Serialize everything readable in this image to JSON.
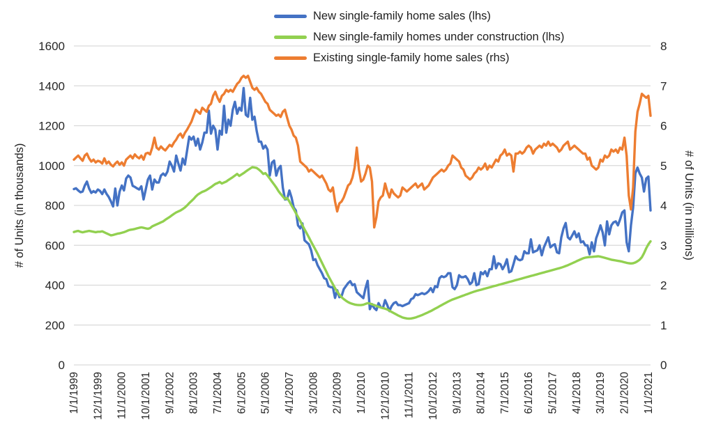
{
  "chart_data": {
    "type": "line",
    "grid": "horizontal",
    "legend_position": "top-center",
    "x_tick_every": 11,
    "x_tick_labels": [
      "1/1/1999",
      "12/1/1999",
      "11/1/2000",
      "10/1/2001",
      "9/1/2002",
      "8/1/2003",
      "7/1/2004",
      "6/1/2005",
      "5/1/2006",
      "4/1/2007",
      "3/1/2008",
      "2/1/2009",
      "1/1/2010",
      "12/1/2010",
      "11/1/2011",
      "10/1/2012",
      "9/1/2013",
      "8/1/2014",
      "7/1/2015",
      "6/1/2016",
      "5/1/2017",
      "4/1/2018",
      "3/1/2019",
      "2/1/2020",
      "1/1/2021"
    ],
    "left_axis": {
      "title": "# of Units (in thousands)",
      "min": 0,
      "max": 1600,
      "step": 200
    },
    "right_axis": {
      "title": "# of Units (in millions)",
      "min": 0,
      "max": 8,
      "step": 1
    },
    "colors": {
      "gridline": "#d9d9d9",
      "text": "#262626"
    },
    "series": [
      {
        "name": "New single-family home sales (lhs)",
        "color": "#4472C4",
        "axis": "left",
        "values": [
          882,
          886,
          875,
          866,
          870,
          900,
          920,
          885,
          863,
          872,
          865,
          880,
          873,
          857,
          880,
          858,
          843,
          820,
          795,
          885,
          800,
          869,
          900,
          875,
          935,
          950,
          940,
          898,
          893,
          886,
          880,
          896,
          830,
          880,
          930,
          950,
          880,
          930,
          915,
          915,
          950,
          960,
          950,
          970,
          1020,
          1000,
          970,
          1050,
          1010,
          975,
          1035,
          1005,
          1075,
          1145,
          1130,
          1145,
          1100,
          1135,
          1080,
          1115,
          1165,
          1165,
          1275,
          1160,
          1200,
          1180,
          1080,
          1175,
          1155,
          1300,
          1165,
          1230,
          1200,
          1280,
          1320,
          1260,
          1290,
          1275,
          1389,
          1255,
          1245,
          1340,
          1230,
          1245,
          1174,
          1120,
          1120,
          1085,
          1100,
          1080,
          950,
          1015,
          1025,
          950,
          985,
          998,
          890,
          830,
          832,
          875,
          840,
          790,
          775,
          700,
          685,
          710,
          625,
          615,
          605,
          575,
          526,
          530,
          500,
          480,
          460,
          435,
          430,
          395,
          390,
          390,
          336,
          375,
          340,
          345,
          380,
          395,
          410,
          420,
          400,
          405,
          365,
          355,
          345,
          335,
          385,
          422,
          280,
          305,
          285,
          275,
          310,
          290,
          285,
          325,
          300,
          270,
          295,
          310,
          315,
          300,
          300,
          295,
          300,
          305,
          310,
          330,
          335,
          355,
          350,
          355,
          360,
          355,
          360,
          370,
          385,
          365,
          395,
          390,
          435,
          445,
          440,
          445,
          460,
          460,
          390,
          380,
          400,
          450,
          440,
          440,
          445,
          430,
          405,
          415,
          460,
          400,
          405,
          465,
          455,
          470,
          445,
          480,
          480,
          545,
          485,
          510,
          505,
          480,
          500,
          530,
          465,
          470,
          505,
          545,
          530,
          525,
          530,
          570,
          560,
          560,
          630,
          565,
          570,
          575,
          600,
          550,
          590,
          615,
          640,
          590,
          600,
          605,
          565,
          560,
          640,
          685,
          712,
          640,
          630,
          650,
          670,
          640,
          660,
          615,
          620,
          600,
          600,
          555,
          615,
          570,
          635,
          665,
          700,
          665,
          600,
          720,
          655,
          700,
          715,
          720,
          700,
          730,
          765,
          775,
          615,
          570,
          700,
          790,
          960,
          990,
          960,
          940,
          870,
          935,
          945,
          775
        ]
      },
      {
        "name": "New single-family homes under construction (lhs)",
        "color": "#92D050",
        "axis": "left",
        "values": [
          667,
          670,
          672,
          668,
          665,
          668,
          670,
          672,
          670,
          668,
          666,
          668,
          668,
          670,
          665,
          660,
          655,
          650,
          652,
          655,
          658,
          660,
          663,
          666,
          670,
          675,
          678,
          680,
          682,
          685,
          688,
          690,
          688,
          685,
          683,
          686,
          695,
          700,
          705,
          710,
          715,
          720,
          728,
          735,
          742,
          750,
          758,
          765,
          770,
          775,
          782,
          790,
          800,
          812,
          822,
          832,
          845,
          855,
          862,
          868,
          872,
          878,
          885,
          892,
          900,
          908,
          912,
          918,
          910,
          915,
          920,
          928,
          935,
          942,
          950,
          958,
          948,
          955,
          962,
          970,
          978,
          985,
          992,
          990,
          988,
          980,
          970,
          958,
          962,
          950,
          935,
          920,
          905,
          890,
          872,
          858,
          845,
          832,
          838,
          820,
          800,
          782,
          762,
          742,
          722,
          700,
          680,
          660,
          640,
          618,
          598,
          578,
          558,
          535,
          512,
          490,
          468,
          445,
          425,
          405,
          385,
          368,
          352,
          340,
          330,
          322,
          315,
          310,
          306,
          303,
          301,
          300,
          300,
          302,
          306,
          310,
          308,
          304,
          300,
          296,
          292,
          288,
          285,
          282,
          278,
          272,
          266,
          260,
          254,
          248,
          243,
          238,
          235,
          233,
          232,
          233,
          235,
          238,
          242,
          246,
          250,
          255,
          260,
          265,
          270,
          276,
          282,
          288,
          294,
          300,
          306,
          312,
          318,
          323,
          328,
          332,
          336,
          340,
          344,
          348,
          352,
          356,
          360,
          364,
          368,
          371,
          374,
          377,
          380,
          383,
          386,
          389,
          392,
          395,
          398,
          401,
          404,
          407,
          410,
          413,
          416,
          419,
          422,
          425,
          428,
          431,
          434,
          437,
          440,
          443,
          446,
          449,
          452,
          455,
          458,
          461,
          464,
          467,
          470,
          473,
          476,
          479,
          482,
          485,
          488,
          492,
          496,
          500,
          505,
          510,
          515,
          520,
          525,
          530,
          535,
          538,
          540,
          541,
          542,
          543,
          544,
          545,
          543,
          540,
          537,
          534,
          531,
          528,
          526,
          524,
          522,
          520,
          518,
          515,
          512,
          510,
          509,
          510,
          514,
          520,
          528,
          540,
          560,
          585,
          605,
          620
        ]
      },
      {
        "name": "Existing single-family home sales (rhs)",
        "color": "#ED7D31",
        "axis": "right",
        "values": [
          5.15,
          5.2,
          5.25,
          5.18,
          5.12,
          5.25,
          5.3,
          5.18,
          5.1,
          5.15,
          5.08,
          5.12,
          5.1,
          5.05,
          5.18,
          5.05,
          5.1,
          5.02,
          4.98,
          5.05,
          5.1,
          5.02,
          5.08,
          5.0,
          5.15,
          5.2,
          5.25,
          5.18,
          5.28,
          5.22,
          5.18,
          5.25,
          5.15,
          5.3,
          5.32,
          5.28,
          5.45,
          5.7,
          5.45,
          5.4,
          5.48,
          5.42,
          5.38,
          5.45,
          5.52,
          5.48,
          5.58,
          5.65,
          5.75,
          5.8,
          5.7,
          5.82,
          5.9,
          6.0,
          6.1,
          6.25,
          6.4,
          6.35,
          6.3,
          6.45,
          6.4,
          6.35,
          6.5,
          6.55,
          6.75,
          6.85,
          6.7,
          6.6,
          6.75,
          6.8,
          6.9,
          6.85,
          6.9,
          6.85,
          6.95,
          7.05,
          7.1,
          7.2,
          7.25,
          7.2,
          7.25,
          7.1,
          6.95,
          6.9,
          6.95,
          6.85,
          6.8,
          6.7,
          6.6,
          6.55,
          6.4,
          6.35,
          6.3,
          6.25,
          6.28,
          6.22,
          6.35,
          6.4,
          6.2,
          6.0,
          5.9,
          5.75,
          5.7,
          5.5,
          5.1,
          5.05,
          5.0,
          4.95,
          4.85,
          4.9,
          4.85,
          4.8,
          4.75,
          4.7,
          4.75,
          4.65,
          4.55,
          4.4,
          4.35,
          4.45,
          4.1,
          3.85,
          4.05,
          4.1,
          4.2,
          4.35,
          4.5,
          4.55,
          4.7,
          4.95,
          5.45,
          4.9,
          4.6,
          4.65,
          4.8,
          5.0,
          4.95,
          4.6,
          3.45,
          3.7,
          4.1,
          4.2,
          4.25,
          4.55,
          4.35,
          4.2,
          4.4,
          4.3,
          4.25,
          4.2,
          4.25,
          4.45,
          4.4,
          4.35,
          4.4,
          4.45,
          4.5,
          4.55,
          4.45,
          4.5,
          4.55,
          4.4,
          4.45,
          4.5,
          4.6,
          4.7,
          4.75,
          4.8,
          4.85,
          4.9,
          4.85,
          4.9,
          5.0,
          5.05,
          5.25,
          5.2,
          5.15,
          5.1,
          4.95,
          4.9,
          4.75,
          4.7,
          4.65,
          4.7,
          4.8,
          4.85,
          4.95,
          4.9,
          4.95,
          5.05,
          4.9,
          5.0,
          4.95,
          5.05,
          5.15,
          5.1,
          5.25,
          5.3,
          5.4,
          5.25,
          5.3,
          5.25,
          4.85,
          5.3,
          5.3,
          5.35,
          5.3,
          5.35,
          5.45,
          5.5,
          5.45,
          5.3,
          5.4,
          5.45,
          5.5,
          5.45,
          5.55,
          5.5,
          5.6,
          5.5,
          5.55,
          5.5,
          5.45,
          5.35,
          5.4,
          5.5,
          5.55,
          5.6,
          5.4,
          5.45,
          5.5,
          5.45,
          5.4,
          5.35,
          5.3,
          5.3,
          5.15,
          5.2,
          5.0,
          4.95,
          4.9,
          4.95,
          5.15,
          5.1,
          5.25,
          5.2,
          5.25,
          5.4,
          5.35,
          5.4,
          5.32,
          5.45,
          5.4,
          5.7,
          5.25,
          4.25,
          3.9,
          4.45,
          5.85,
          6.35,
          6.55,
          6.8,
          6.75,
          6.7,
          6.75,
          6.25
        ]
      }
    ]
  },
  "legend": {
    "items": [
      {
        "label": "New single-family home sales (lhs)"
      },
      {
        "label": "New single-family homes under construction (lhs)"
      },
      {
        "label": "Existing single-family home sales (rhs)"
      }
    ]
  },
  "axes": {
    "left": {
      "title": "# of Units (in thousands)"
    },
    "right": {
      "title": "# of Units (in millions)"
    }
  }
}
